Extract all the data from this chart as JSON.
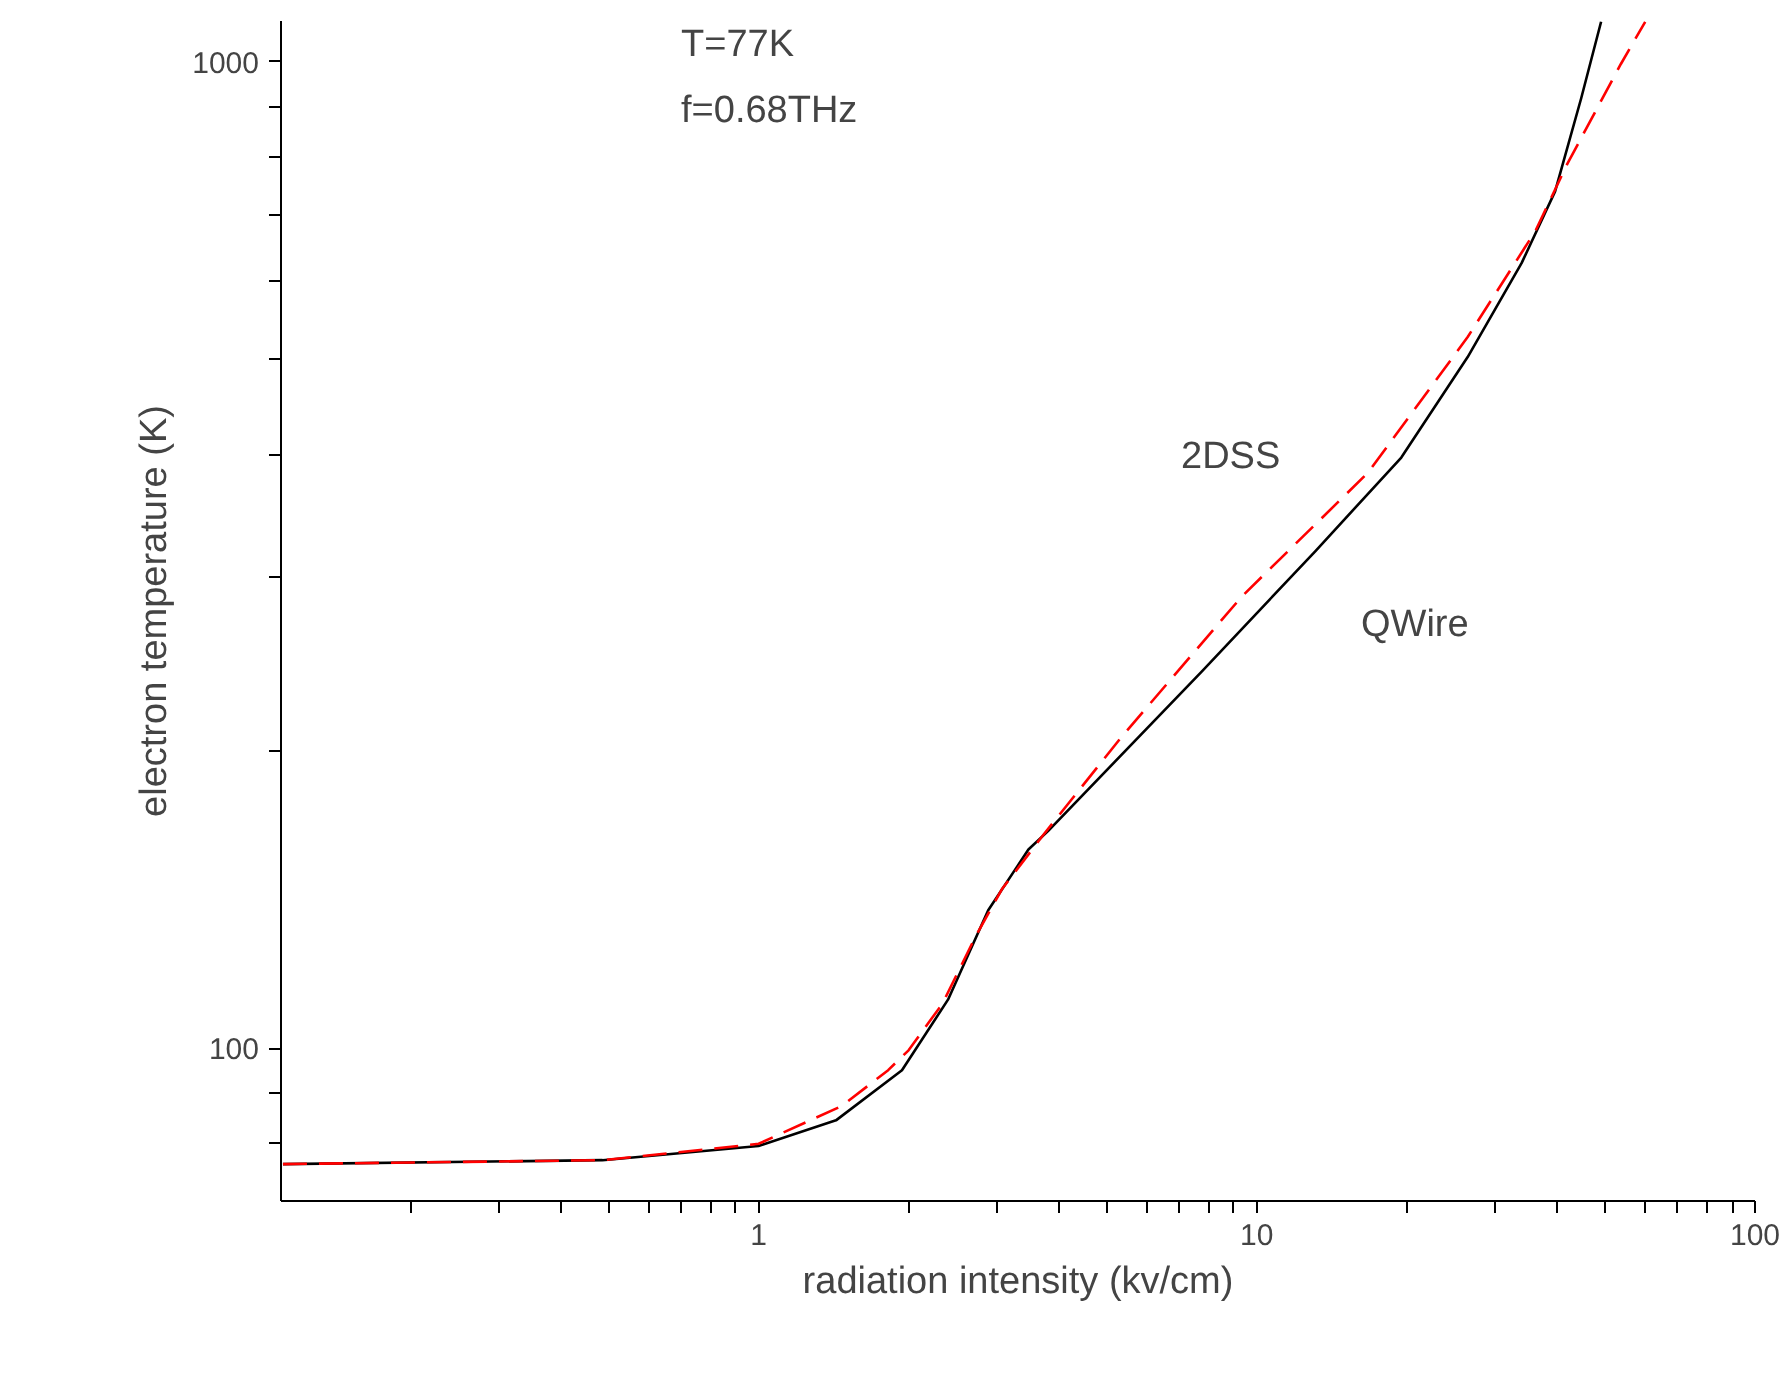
{
  "chart_data": {
    "type": "line",
    "xlabel": "radiation intensity (kv/cm)",
    "ylabel": "electron temperature (K)",
    "log": "xy",
    "grid": false,
    "annotations": [
      "T=77K",
      "f=0.68THz"
    ],
    "xlim": [
      0.11,
      100
    ],
    "ylim": [
      70,
      1100
    ],
    "xticks": [
      {
        "value": 0.2,
        "label": null
      },
      {
        "value": 0.3,
        "label": null
      },
      {
        "value": 0.4,
        "label": null
      },
      {
        "value": 0.5,
        "label": null
      },
      {
        "value": 0.6,
        "label": null
      },
      {
        "value": 0.7,
        "label": null
      },
      {
        "value": 0.8,
        "label": null
      },
      {
        "value": 0.9,
        "label": null
      },
      1,
      {
        "value": 2,
        "label": null
      },
      {
        "value": 3,
        "label": null
      },
      {
        "value": 4,
        "label": null
      },
      {
        "value": 5,
        "label": null
      },
      {
        "value": 6,
        "label": null
      },
      {
        "value": 7,
        "label": null
      },
      {
        "value": 8,
        "label": null
      },
      {
        "value": 9,
        "label": null
      },
      10,
      {
        "value": 20,
        "label": null
      },
      {
        "value": 30,
        "label": null
      },
      {
        "value": 40,
        "label": null
      },
      {
        "value": 50,
        "label": null
      },
      {
        "value": 60,
        "label": null
      },
      {
        "value": 70,
        "label": null
      },
      {
        "value": 80,
        "label": null
      },
      {
        "value": 90,
        "label": null
      },
      100
    ],
    "yticks": [
      {
        "value": 80,
        "label": null
      },
      {
        "value": 90,
        "label": null
      },
      100,
      {
        "value": 200,
        "label": null
      },
      {
        "value": 300,
        "label": null
      },
      {
        "value": 400,
        "label": null
      },
      {
        "value": 500,
        "label": null
      },
      {
        "value": 600,
        "label": null
      },
      {
        "value": 700,
        "label": null
      },
      {
        "value": 800,
        "label": null
      },
      {
        "value": 900,
        "label": null
      },
      1000
    ],
    "series": [
      {
        "name": "QWire",
        "color": "#000000",
        "line_style": "solid",
        "x": [
          0.111,
          0.486,
          1,
          1.43,
          1.94,
          2.4,
          2.89,
          3.48,
          3.81,
          7.76,
          13.1,
          19.5,
          26.5,
          34.0,
          39.7,
          44.8,
          49.1
        ],
        "values": [
          76.3,
          77,
          79.6,
          84.5,
          95,
          112,
          138,
          159,
          166,
          241,
          319,
          397,
          502,
          625,
          739,
          919,
          1098
        ]
      },
      {
        "name": "2DSS",
        "color": "#ff0000",
        "line_style": "dashed",
        "x": [
          0.111,
          0.486,
          1,
          1.47,
          1.82,
          2.0,
          2.34,
          2.73,
          3.08,
          3.71,
          5.36,
          9.33,
          16.7,
          26.5,
          36.2,
          42.0,
          53.8,
          60.2
        ],
        "values": [
          76.3,
          77,
          80,
          87.4,
          95,
          99.5,
          111,
          130,
          145,
          164,
          207,
          287,
          383,
          526,
          673,
          788,
          995,
          1098
        ]
      }
    ]
  }
}
